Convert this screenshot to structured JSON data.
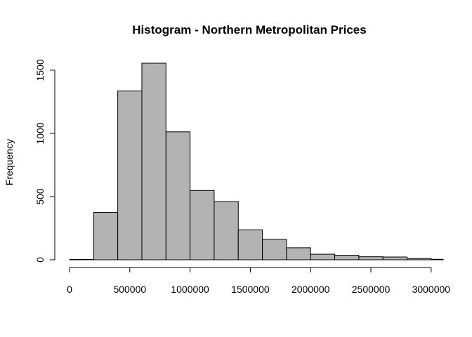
{
  "chart_data": {
    "type": "bar",
    "title": "Histogram - Northern Metropolitan Prices",
    "xlabel": "",
    "ylabel": "Frequency",
    "bin_edges": [
      0,
      200000,
      400000,
      600000,
      800000,
      1000000,
      1200000,
      1400000,
      1600000,
      1800000,
      2000000,
      2200000,
      2400000,
      2600000,
      2800000,
      3000000,
      3100000
    ],
    "values": [
      3,
      375,
      1335,
      1555,
      1012,
      548,
      460,
      237,
      161,
      95,
      44,
      36,
      24,
      22,
      10,
      4
    ],
    "xlim": [
      0,
      3100000
    ],
    "ylim": [
      0,
      1555
    ],
    "x_ticks": [
      0,
      500000,
      1000000,
      1500000,
      2000000,
      2500000,
      3000000
    ],
    "x_tick_labels": [
      "0",
      "500000",
      "1000000",
      "1500000",
      "2000000",
      "2500000",
      "3000000"
    ],
    "y_ticks": [
      0,
      500,
      1000,
      1500
    ],
    "y_tick_labels": [
      "0",
      "500",
      "1000",
      "1500"
    ],
    "grid": false,
    "colors": {
      "bar_fill": "#b3b3b3",
      "bar_stroke": "#000000"
    }
  }
}
